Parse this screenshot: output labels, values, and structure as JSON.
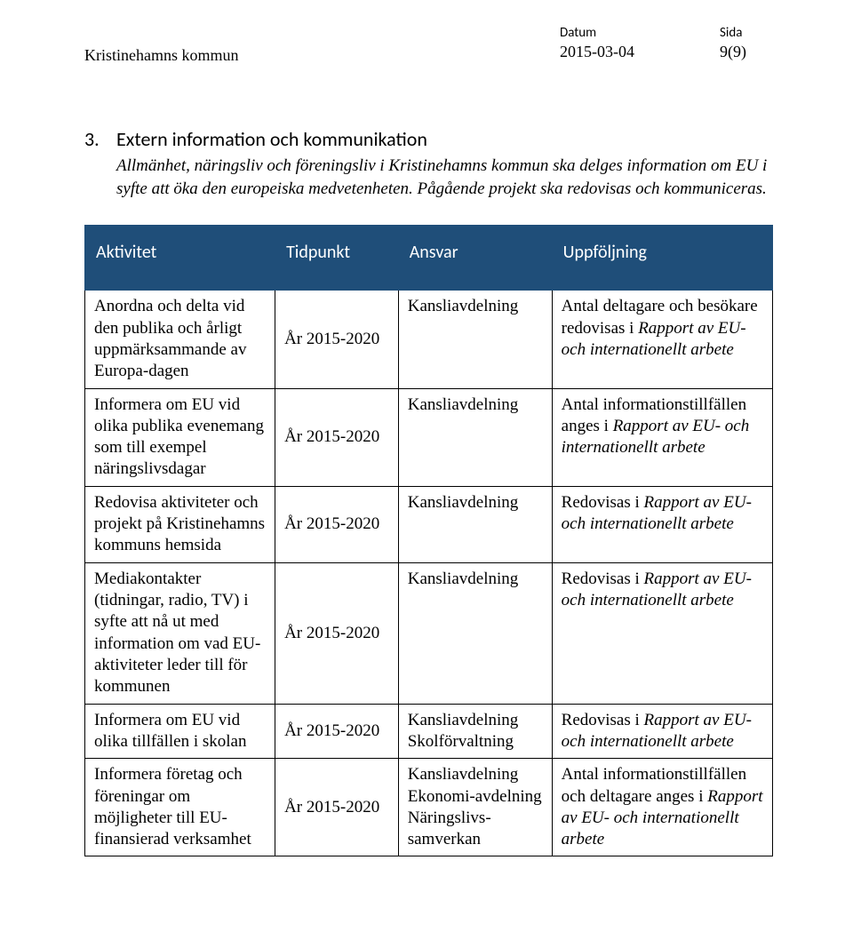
{
  "header": {
    "org": "Kristinehamns kommun",
    "date_label": "Datum",
    "date_value": "2015-03-04",
    "page_label": "Sida",
    "page_value": "9(9)"
  },
  "section": {
    "number": "3.",
    "title": "Extern information och kommunikation",
    "body_line1": "Allmänhet, näringsliv och föreningsliv i Kristinehamns kommun ska delges information om EU i syfte att öka den europeiska medvetenheten. Pågående projekt ska redovisas och kommuniceras."
  },
  "table": {
    "headers": [
      "Aktivitet",
      "Tidpunkt",
      "Ansvar",
      "Uppföljning"
    ],
    "rows": [
      {
        "aktivitet": "Anordna och delta vid den publika och årligt uppmärksammande av Europa-dagen",
        "tidpunkt": "År 2015-2020",
        "ansvar": "Kansliavdelning",
        "uppfoljning_pre": "Antal deltagare och besökare redovisas i ",
        "uppfoljning_italic": "Rapport av EU- och internationellt arbete",
        "uppfoljning_post": ""
      },
      {
        "aktivitet": "Informera om EU vid olika publika evenemang som till exempel näringslivsdagar",
        "tidpunkt": "År 2015-2020",
        "ansvar": "Kansliavdelning",
        "uppfoljning_pre": "Antal informationstillfällen anges i ",
        "uppfoljning_italic": "Rapport av EU- och internationellt arbete",
        "uppfoljning_post": ""
      },
      {
        "aktivitet": "Redovisa aktiviteter och projekt på Kristinehamns kommuns hemsida",
        "tidpunkt": "År 2015-2020",
        "ansvar": "Kansliavdelning",
        "uppfoljning_pre": "Redovisas i ",
        "uppfoljning_italic": "Rapport av EU- och internationellt arbete",
        "uppfoljning_post": ""
      },
      {
        "aktivitet": "Mediakontakter (tidningar, radio, TV) i syfte att nå ut med information om vad EU-aktiviteter leder till för kommunen",
        "tidpunkt": "År 2015-2020",
        "ansvar": "Kansliavdelning",
        "uppfoljning_pre": "Redovisas i ",
        "uppfoljning_italic": "Rapport av EU- och internationellt arbete",
        "uppfoljning_post": ""
      },
      {
        "aktivitet": "Informera om EU vid olika tillfällen i skolan",
        "tidpunkt": "År 2015-2020",
        "ansvar": "Kansliavdelning Skolförvaltning",
        "uppfoljning_pre": "Redovisas i ",
        "uppfoljning_italic": "Rapport av EU- och internationellt arbete",
        "uppfoljning_post": ""
      },
      {
        "aktivitet": "Informera företag och föreningar om möjligheter till EU-finansierad verksamhet",
        "tidpunkt": "År 2015-2020",
        "ansvar": "Kansliavdelning Ekonomi-avdelning Näringslivs-samverkan",
        "uppfoljning_pre": "Antal informationstillfällen och deltagare anges i ",
        "uppfoljning_italic": "Rapport av EU- och internationellt arbete",
        "uppfoljning_post": ""
      }
    ]
  },
  "colors": {
    "header_bg": "#1f4e79",
    "header_fg": "#ffffff",
    "border": "#000000",
    "page_bg": "#ffffff",
    "text": "#000000"
  }
}
